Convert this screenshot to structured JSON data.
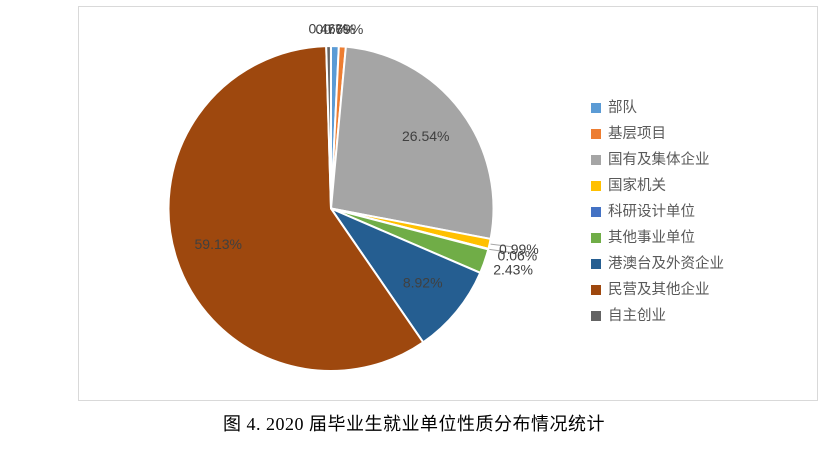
{
  "figure": {
    "caption": "图 4. 2020 届毕业生就业单位性质分布情况统计"
  },
  "chart_data": {
    "type": "pie",
    "title": "图 4. 2020 届毕业生就业单位性质分布情况统计",
    "legend_position": "right",
    "direction": "clockwise",
    "start_angle_deg": 0,
    "categories": [
      "部队",
      "基层项目",
      "国有及集体企业",
      "国家机关",
      "科研设计单位",
      "其他事业单位",
      "港澳台及外资企业",
      "民营及其他企业",
      "自主创业"
    ],
    "values": [
      0.77,
      0.69,
      26.54,
      0.99,
      0.06,
      2.43,
      8.92,
      59.13,
      0.46
    ],
    "labels": [
      "0.77%",
      "0.69%",
      "26.54%",
      "0.99%",
      "0.06%",
      "2.43%",
      "8.92%",
      "59.13%",
      "0.46%"
    ],
    "unit": "%",
    "colors": [
      "#5B9BD5",
      "#ED7D31",
      "#A5A5A5",
      "#FFC000",
      "#4472C4",
      "#70AD47",
      "#255E91",
      "#9E480E",
      "#636363"
    ],
    "label_text_color": "#404040",
    "legend_text_color": "#595959",
    "frame_border_color": "#D9D9D9",
    "leader_line_color": "#A6A6A6",
    "slices_with_leader_lines": [
      3,
      4
    ],
    "inside_label_threshold_pct": 5
  }
}
